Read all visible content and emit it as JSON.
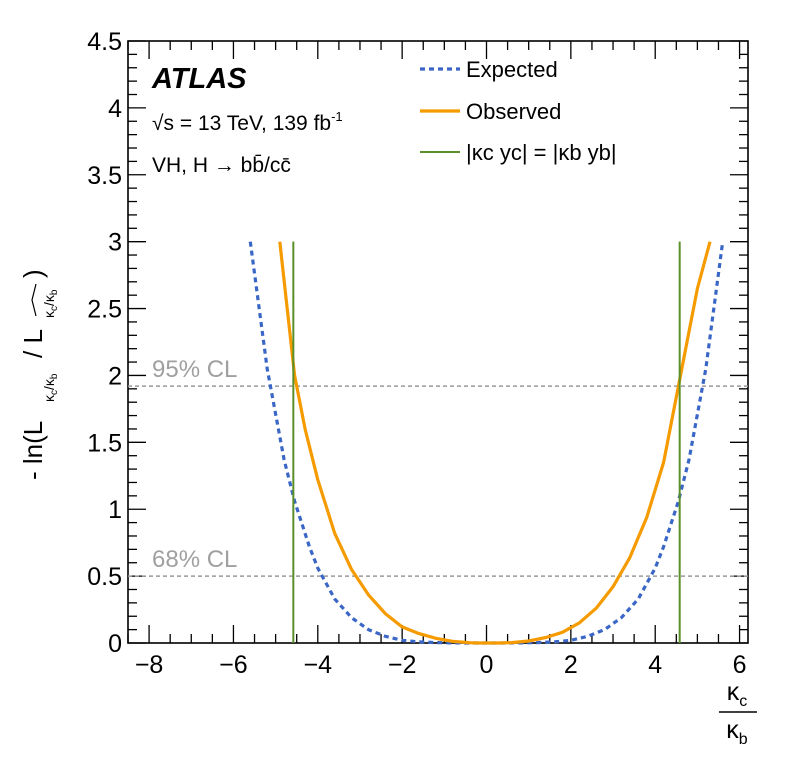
{
  "chart_data": {
    "type": "line",
    "experiment": "ATLAS",
    "energy_text": "√s = 13 TeV, 139 fb",
    "energy_sup": "-1",
    "process_text": "VH, H → bb̄/cc̄",
    "ylabel": {
      "prefix": "- ln(L",
      "mid": "/ L",
      "suffix": ")",
      "sub1": "κc/κb",
      "sub2": "κc/κb (hat)"
    },
    "xlabel": {
      "numerator": "κc",
      "denominator": "κb"
    },
    "xlim": [
      -8.5,
      6.2
    ],
    "ylim": [
      0,
      4.5
    ],
    "xticks": [
      -8,
      -6,
      -4,
      -2,
      0,
      2,
      4,
      6
    ],
    "xtick_labels": [
      "−8",
      "−6",
      "−4",
      "−2",
      "0",
      "2",
      "4",
      "6"
    ],
    "yticks": [
      0,
      0.5,
      1,
      1.5,
      2,
      2.5,
      3,
      3.5,
      4,
      4.5
    ],
    "ytick_labels": [
      "0",
      "0.5",
      "1",
      "1.5",
      "2",
      "2.5",
      "3",
      "3.5",
      "4",
      "4.5"
    ],
    "curve_ymax": 3,
    "series": [
      {
        "name": "Expected",
        "style": "dotted",
        "color": "#3a66c6",
        "x": [
          -5.6,
          -5.2,
          -4.8,
          -4.55,
          -4.2,
          -4.0,
          -3.6,
          -3.2,
          -2.8,
          -2.4,
          -2.0,
          -1.6,
          -1.2,
          -0.8,
          -0.4,
          0.0,
          0.4,
          0.8,
          1.2,
          1.6,
          2.0,
          2.4,
          2.8,
          3.2,
          3.6,
          4.0,
          4.2,
          4.55,
          4.8,
          5.2,
          5.6
        ],
        "y": [
          3.0,
          2.05,
          1.37,
          1.06,
          0.72,
          0.56,
          0.33,
          0.19,
          0.1,
          0.05,
          0.02,
          0.008,
          0.003,
          0.001,
          0.0,
          0.0,
          0.0,
          0.001,
          0.003,
          0.008,
          0.02,
          0.05,
          0.1,
          0.19,
          0.33,
          0.56,
          0.72,
          1.06,
          1.37,
          2.05,
          3.0
        ]
      },
      {
        "name": "Observed",
        "style": "solid",
        "color": "#f59b00",
        "x": [
          -4.9,
          -4.55,
          -4.3,
          -4.0,
          -3.6,
          -3.2,
          -2.8,
          -2.4,
          -2.0,
          -1.6,
          -1.2,
          -0.8,
          -0.4,
          -0.2,
          0.0,
          0.3,
          0.6,
          1.0,
          1.4,
          1.8,
          2.2,
          2.6,
          3.0,
          3.4,
          3.8,
          4.2,
          4.6,
          5.0,
          5.3
        ],
        "y": [
          3.0,
          2.0,
          1.6,
          1.22,
          0.82,
          0.55,
          0.36,
          0.22,
          0.12,
          0.07,
          0.035,
          0.012,
          0.002,
          0.0,
          0.0,
          0.0,
          0.003,
          0.015,
          0.04,
          0.08,
          0.15,
          0.26,
          0.42,
          0.64,
          0.94,
          1.35,
          2.0,
          2.65,
          3.0
        ]
      },
      {
        "name": "|κc yc| = |κb yb|",
        "style": "vertical-lines",
        "color": "#5a8f29",
        "x": [
          -4.58,
          4.58
        ]
      }
    ],
    "legend": [
      {
        "label": "Expected",
        "style": "dotted",
        "color": "#3a66c6"
      },
      {
        "label": "Observed",
        "style": "solid",
        "color": "#f59b00"
      },
      {
        "label": "|κc yc| = |κb yb|",
        "style": "solid",
        "color": "#5a8f29"
      }
    ],
    "legend_position": "top-right",
    "annotations": [
      {
        "text": "95% CL",
        "y": 1.92,
        "color": "#a0a0a0"
      },
      {
        "text": "68% CL",
        "y": 0.5,
        "color": "#a0a0a0"
      }
    ]
  }
}
